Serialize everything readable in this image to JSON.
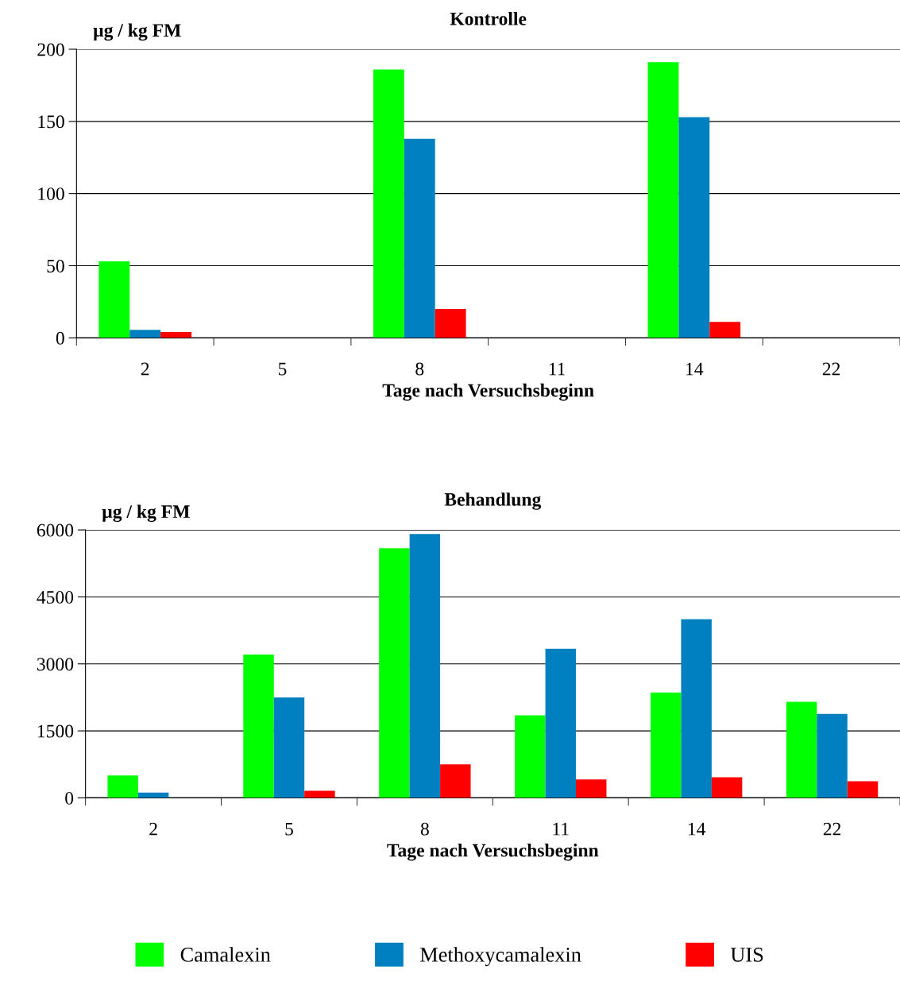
{
  "chart_data": [
    {
      "type": "bar",
      "title": "Kontrolle",
      "xlabel": "Tage nach Versuchsbeginn",
      "ylabel": "µg / kg FM",
      "categories": [
        "2",
        "5",
        "8",
        "11",
        "14",
        "22"
      ],
      "series": [
        {
          "color": "#00ff00",
          "values": [
            53,
            null,
            186,
            null,
            191,
            null
          ]
        },
        {
          "color": "#0080c0",
          "values": [
            5.5,
            null,
            138,
            null,
            153,
            null
          ]
        },
        {
          "color": "#ff0000",
          "values": [
            4,
            null,
            20,
            null,
            11,
            null
          ]
        }
      ],
      "ylim": [
        0,
        200
      ],
      "yticks": [
        0,
        50,
        100,
        150,
        200
      ],
      "grid": "y"
    },
    {
      "type": "bar",
      "title": "Behandlung",
      "xlabel": "Tage nach Versuchsbeginn",
      "ylabel": "µg / kg FM",
      "categories": [
        "2",
        "5",
        "8",
        "11",
        "14",
        "22"
      ],
      "series": [
        {
          "name": "Camalexin",
          "color": "#00ff00",
          "values": [
            500,
            3210,
            5590,
            1850,
            2360,
            2150
          ]
        },
        {
          "name": "Methoxycamalexin",
          "color": "#0080c0",
          "values": [
            120,
            2250,
            5910,
            3340,
            4000,
            1880
          ]
        },
        {
          "name": "UIS",
          "color": "#ff0000",
          "values": [
            null,
            160,
            750,
            410,
            460,
            370
          ]
        }
      ],
      "ylim": [
        0,
        6000
      ],
      "yticks": [
        0,
        1500,
        3000,
        4500,
        6000
      ],
      "grid": "y",
      "legend": "bottom"
    }
  ]
}
